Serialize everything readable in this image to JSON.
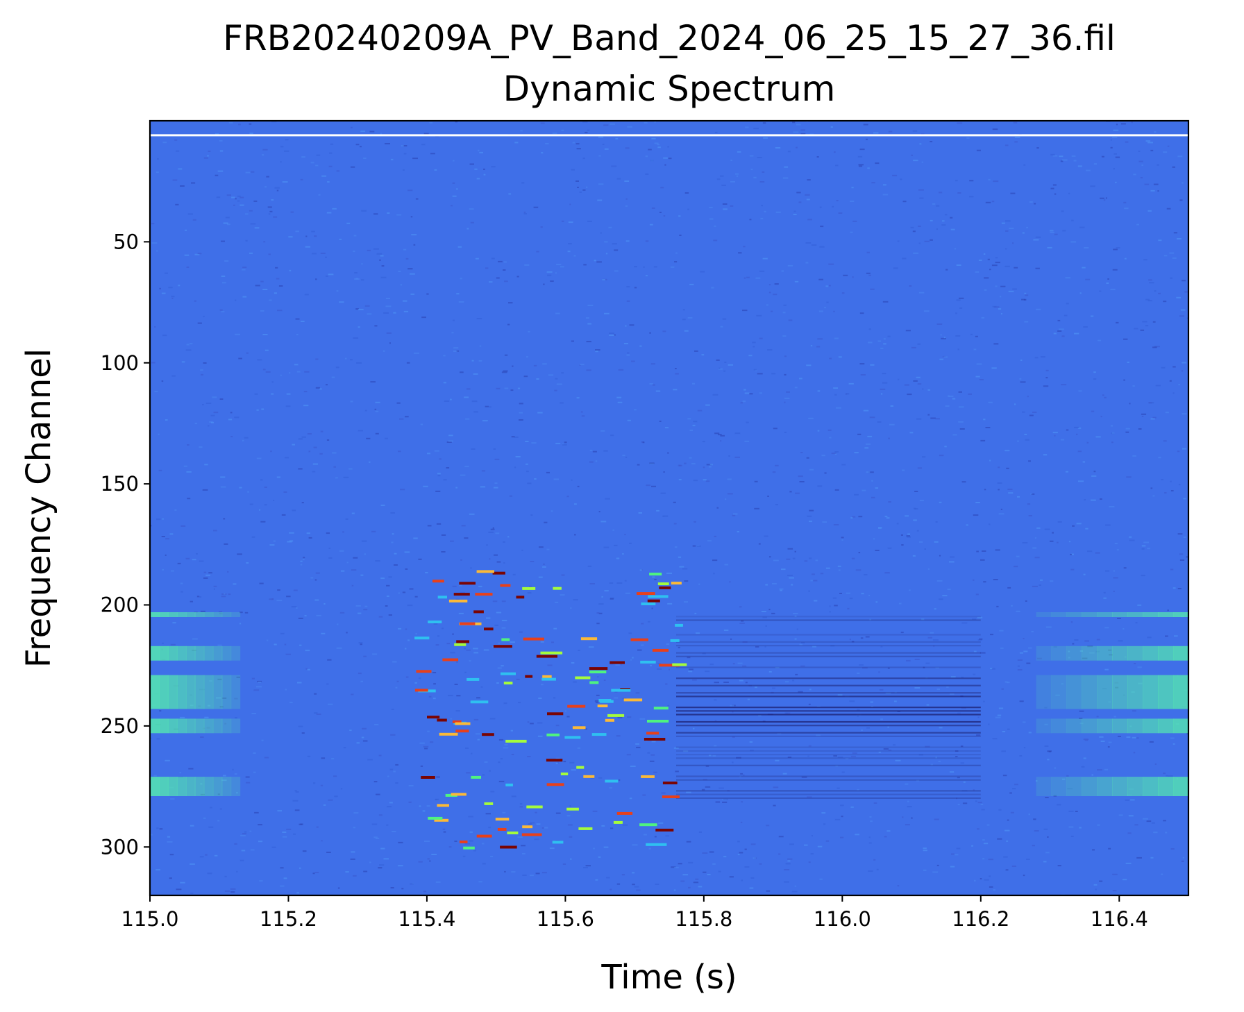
{
  "chart_data": {
    "type": "heatmap",
    "title": "FRB20240209A_PV_Band_2024_06_25_15_27_36.fil",
    "subtitle": "Dynamic Spectrum",
    "xlabel": "Time (s)",
    "ylabel": "Frequency Channel",
    "xlim": [
      115.0,
      116.5
    ],
    "ylim": [
      320,
      0
    ],
    "x_ticks": [
      115.0,
      115.2,
      115.4,
      115.6,
      115.8,
      116.0,
      116.2,
      116.4
    ],
    "x_tick_labels": [
      "115.0",
      "115.2",
      "115.4",
      "115.6",
      "115.8",
      "116.0",
      "116.2",
      "116.4"
    ],
    "y_ticks": [
      50,
      100,
      150,
      200,
      250,
      300
    ],
    "y_tick_labels": [
      "50",
      "100",
      "150",
      "200",
      "250",
      "300"
    ],
    "colormap": "turbo",
    "background_color": "#3f6fe8",
    "grid": false,
    "features": {
      "masked_channel": 6,
      "burst_time_range": [
        115.37,
        115.76
      ],
      "burst_channel_range": [
        185,
        300
      ],
      "dip_time_range": [
        115.76,
        116.2
      ],
      "dip_channel_range": [
        203,
        280
      ],
      "bright_channel_bands": [
        [
          203,
          205
        ],
        [
          217,
          223
        ],
        [
          229,
          243
        ],
        [
          247,
          253
        ],
        [
          271,
          279
        ]
      ]
    }
  }
}
